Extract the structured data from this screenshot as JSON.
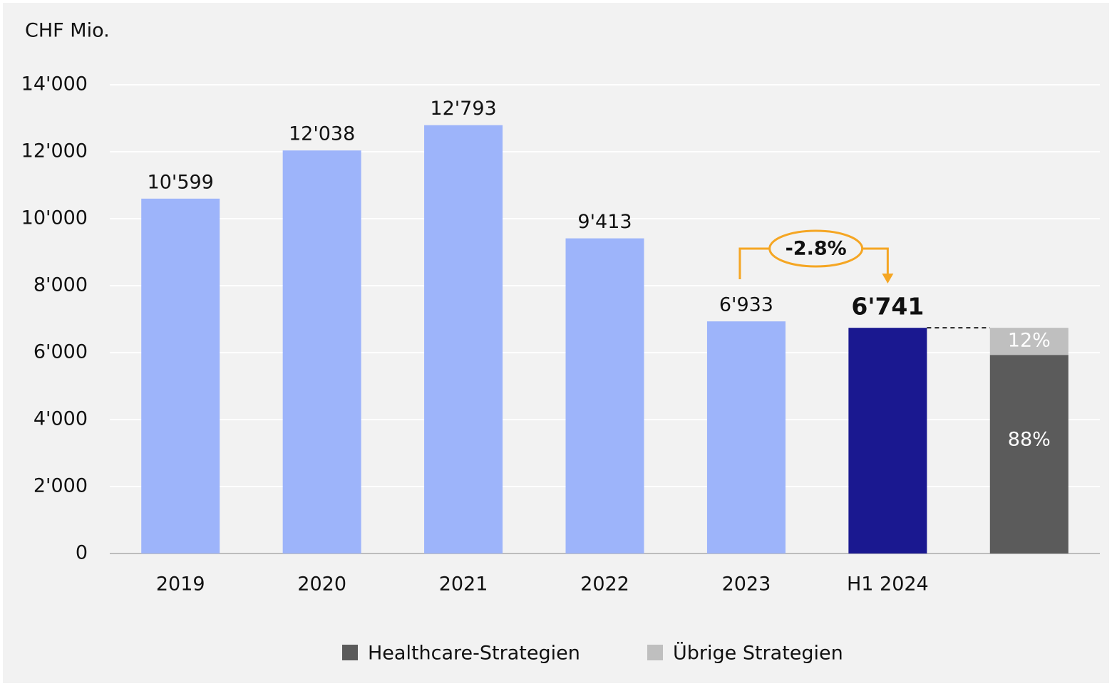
{
  "chart_data": {
    "type": "bar",
    "y_label": "CHF Mio.",
    "categories": [
      "2019",
      "2020",
      "2021",
      "2022",
      "2023",
      "H1 2024",
      null
    ],
    "values": [
      10599,
      12038,
      12793,
      9413,
      6933,
      6741,
      null
    ],
    "value_labels": [
      "10'599",
      "12'038",
      "12'793",
      "9'413",
      "6'933",
      "6'741",
      null
    ],
    "colors": [
      "#9db4fa",
      "#9db4fa",
      "#9db4fa",
      "#9db4fa",
      "#9db4fa",
      "#1a1890",
      "#9db4fa"
    ],
    "stacked_series": [
      {
        "name": "Healthcare-Strategien",
        "color": "#5b5b5b",
        "values": [
          null,
          null,
          null,
          null,
          null,
          null,
          5932
        ],
        "value_labels": [
          null,
          null,
          null,
          null,
          null,
          null,
          "88%"
        ]
      },
      {
        "name": "Übrige Strategien",
        "color": "#bfbfbf",
        "values": [
          null,
          null,
          null,
          null,
          null,
          null,
          809
        ],
        "value_labels": [
          null,
          null,
          null,
          null,
          null,
          null,
          "12%"
        ]
      }
    ],
    "annotation": "-2.8%",
    "ylim": [
      0,
      14000
    ],
    "yticks": [
      0,
      {
        "value": 2000,
        "label": "2'000"
      },
      {
        "value": 4000,
        "label": "4'000"
      },
      {
        "value": 6000,
        "label": "6'000"
      },
      {
        "value": 8000,
        "label": "8'000"
      },
      {
        "value": 10000,
        "label": "10'000"
      },
      {
        "value": 12000,
        "label": "12'000"
      },
      {
        "value": 14000,
        "label": "14'000"
      }
    ],
    "grid": true,
    "legend": "bottom"
  }
}
